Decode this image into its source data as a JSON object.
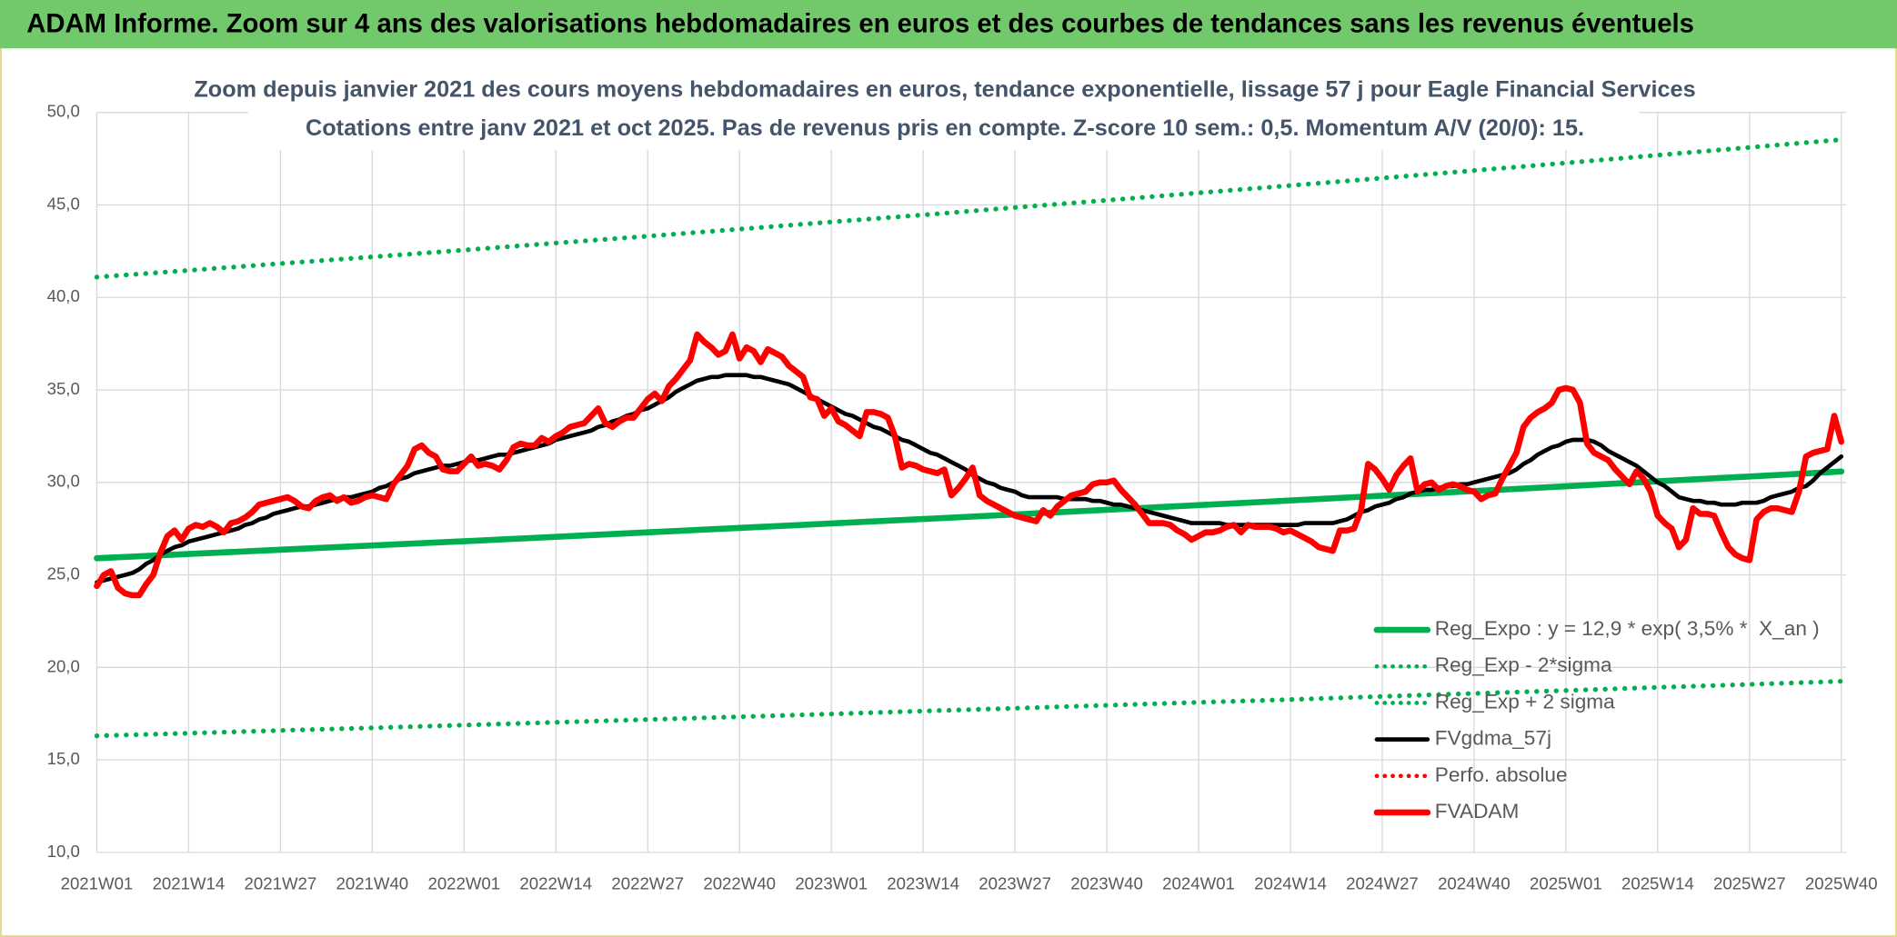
{
  "chart_data": {
    "type": "line",
    "title": "ADAM Informe. Zoom sur 4 ans des valorisations hebdomadaires en euros et des courbes de tendances sans les revenus éventuels",
    "subtitle": [
      "Zoom depuis janvier 2021 des cours moyens hebdomadaires en euros, tendance exponentielle, lissage 57 j pour Eagle Financial Services",
      "Cotations entre janv 2021 et oct 2025. Pas de revenus pris en compte. Z-score 10 sem.: 0,5. Momentum A/V (20/0): 15."
    ],
    "categories": [
      "2021W01",
      null,
      null,
      null,
      null,
      null,
      null,
      null,
      null,
      null,
      null,
      null,
      null,
      "2021W14",
      null,
      null,
      null,
      null,
      null,
      null,
      null,
      null,
      null,
      null,
      null,
      null,
      "2021W27",
      null,
      null,
      null,
      null,
      null,
      null,
      null,
      null,
      null,
      null,
      null,
      null,
      "2021W40",
      null,
      null,
      null,
      null,
      null,
      null,
      null,
      null,
      null,
      null,
      null,
      null,
      "2022W01",
      null,
      null,
      null,
      null,
      null,
      null,
      null,
      null,
      null,
      null,
      null,
      null,
      "2022W14",
      null,
      null,
      null,
      null,
      null,
      null,
      null,
      null,
      null,
      null,
      null,
      null,
      "2022W27",
      null,
      null,
      null,
      null,
      null,
      null,
      null,
      null,
      null,
      null,
      null,
      null,
      "2022W40",
      null,
      null,
      null,
      null,
      null,
      null,
      null,
      null,
      null,
      null,
      null,
      null,
      "2023W01",
      null,
      null,
      null,
      null,
      null,
      null,
      null,
      null,
      null,
      null,
      null,
      null,
      "2023W14",
      null,
      null,
      null,
      null,
      null,
      null,
      null,
      null,
      null,
      null,
      null,
      null,
      "2023W27",
      null,
      null,
      null,
      null,
      null,
      null,
      null,
      null,
      null,
      null,
      null,
      null,
      "2023W40",
      null,
      null,
      null,
      null,
      null,
      null,
      null,
      null,
      null,
      null,
      null,
      null,
      "2024W01",
      null,
      null,
      null,
      null,
      null,
      null,
      null,
      null,
      null,
      null,
      null,
      null,
      "2024W14",
      null,
      null,
      null,
      null,
      null,
      null,
      null,
      null,
      null,
      null,
      null,
      null,
      "2024W27",
      null,
      null,
      null,
      null,
      null,
      null,
      null,
      null,
      null,
      null,
      null,
      null,
      "2024W40",
      null,
      null,
      null,
      null,
      null,
      null,
      null,
      null,
      null,
      null,
      null,
      null,
      "2025W01",
      null,
      null,
      null,
      null,
      null,
      null,
      null,
      null,
      null,
      null,
      null,
      null,
      "2025W14",
      null,
      null,
      null,
      null,
      null,
      null,
      null,
      null,
      null,
      null,
      null,
      null,
      "2025W27",
      null,
      null,
      null,
      null,
      null,
      null,
      null,
      null,
      null,
      null,
      null,
      null,
      "2025W40"
    ],
    "ylim": [
      10,
      50
    ],
    "yticks": [
      {
        "value": 10,
        "label": "10,0"
      },
      {
        "value": 15,
        "label": "15,0"
      },
      {
        "value": 20,
        "label": "20,0"
      },
      {
        "value": 25,
        "label": "25,0"
      },
      {
        "value": 30,
        "label": "30,0"
      },
      {
        "value": 35,
        "label": "35,0"
      },
      {
        "value": 40,
        "label": "40,0"
      },
      {
        "value": 45,
        "label": "45,0"
      },
      {
        "value": 50,
        "label": "50,0"
      }
    ],
    "grid": true,
    "legend": "lower right",
    "series": [
      {
        "name": "Reg_Expo : y = 12,9 * exp( 3,5% *  X_an )",
        "color": "#00b050",
        "style": "solid",
        "x": [
          "2021W01",
          "2021W14",
          "2021W27",
          "2021W40",
          "2022W01",
          "2022W14",
          "2022W27",
          "2022W40",
          "2023W01",
          "2023W14",
          "2023W27",
          "2023W40",
          "2024W01",
          "2024W14",
          "2024W27",
          "2024W40",
          "2025W01",
          "2025W14",
          "2025W27",
          "2025W40"
        ],
        "values": [
          25.9,
          26.13,
          26.36,
          26.59,
          26.82,
          27.06,
          27.3,
          27.54,
          27.78,
          28.02,
          28.27,
          28.52,
          28.77,
          29.02,
          29.28,
          29.53,
          29.79,
          30.06,
          30.32,
          30.59
        ]
      },
      {
        "name": "Reg_Exp - 2*sigma",
        "color": "#00b050",
        "style": "dotted",
        "x": [
          "2021W01",
          "2021W14",
          "2021W27",
          "2021W40",
          "2022W01",
          "2022W14",
          "2022W27",
          "2022W40",
          "2023W01",
          "2023W14",
          "2023W27",
          "2023W40",
          "2024W01",
          "2024W14",
          "2024W27",
          "2024W40",
          "2025W01",
          "2025W14",
          "2025W27",
          "2025W40"
        ],
        "values": [
          16.3,
          16.44,
          16.59,
          16.73,
          16.88,
          17.03,
          17.18,
          17.33,
          17.48,
          17.64,
          17.79,
          17.95,
          18.11,
          18.26,
          18.43,
          18.59,
          18.75,
          18.92,
          19.08,
          19.25
        ]
      },
      {
        "name": "Reg_Exp + 2 sigma",
        "color": "#00b050",
        "style": "dotted",
        "x": [
          "2021W01",
          "2021W14",
          "2021W27",
          "2021W40",
          "2022W01",
          "2022W14",
          "2022W27",
          "2022W40",
          "2023W01",
          "2023W14",
          "2023W27",
          "2023W40",
          "2024W01",
          "2024W14",
          "2024W27",
          "2024W40",
          "2025W01",
          "2025W14",
          "2025W27",
          "2025W40"
        ],
        "values": [
          41.1,
          41.46,
          41.83,
          42.19,
          42.56,
          42.94,
          43.31,
          43.69,
          44.08,
          44.46,
          44.86,
          45.25,
          45.65,
          46.05,
          46.45,
          46.86,
          47.27,
          47.69,
          48.11,
          48.53
        ]
      },
      {
        "name": "FVgdma_57j",
        "color": "#000000",
        "style": "solid",
        "values": [
          24.6,
          24.7,
          24.8,
          24.9,
          25.0,
          25.1,
          25.3,
          25.6,
          25.8,
          26.1,
          26.3,
          26.5,
          26.6,
          26.8,
          26.9,
          27.0,
          27.1,
          27.2,
          27.3,
          27.4,
          27.5,
          27.7,
          27.8,
          28.0,
          28.1,
          28.3,
          28.4,
          28.5,
          28.6,
          28.7,
          28.7,
          28.8,
          28.9,
          29.0,
          29.1,
          29.2,
          29.2,
          29.3,
          29.4,
          29.5,
          29.7,
          29.8,
          30.0,
          30.2,
          30.3,
          30.5,
          30.6,
          30.7,
          30.8,
          30.9,
          30.9,
          31.0,
          31.1,
          31.2,
          31.2,
          31.3,
          31.4,
          31.5,
          31.5,
          31.6,
          31.7,
          31.8,
          31.9,
          32.0,
          32.1,
          32.3,
          32.4,
          32.5,
          32.6,
          32.7,
          32.8,
          33.0,
          33.1,
          33.3,
          33.4,
          33.6,
          33.7,
          33.9,
          34.0,
          34.2,
          34.4,
          34.6,
          34.9,
          35.1,
          35.3,
          35.5,
          35.6,
          35.7,
          35.7,
          35.8,
          35.8,
          35.8,
          35.8,
          35.7,
          35.7,
          35.6,
          35.5,
          35.4,
          35.3,
          35.1,
          34.9,
          34.7,
          34.5,
          34.3,
          34.1,
          33.9,
          33.7,
          33.6,
          33.4,
          33.2,
          33.0,
          32.9,
          32.7,
          32.5,
          32.3,
          32.2,
          32.0,
          31.8,
          31.6,
          31.5,
          31.3,
          31.1,
          30.9,
          30.7,
          30.4,
          30.2,
          30.0,
          29.9,
          29.7,
          29.6,
          29.5,
          29.3,
          29.2,
          29.2,
          29.2,
          29.2,
          29.2,
          29.1,
          29.1,
          29.1,
          29.1,
          29.0,
          29.0,
          28.9,
          28.8,
          28.8,
          28.7,
          28.6,
          28.5,
          28.4,
          28.3,
          28.2,
          28.1,
          28.0,
          27.9,
          27.8,
          27.8,
          27.8,
          27.8,
          27.8,
          27.7,
          27.7,
          27.7,
          27.7,
          27.7,
          27.7,
          27.7,
          27.7,
          27.7,
          27.7,
          27.7,
          27.8,
          27.8,
          27.8,
          27.8,
          27.8,
          27.9,
          28.0,
          28.2,
          28.4,
          28.5,
          28.7,
          28.8,
          28.9,
          29.1,
          29.2,
          29.4,
          29.5,
          29.6,
          29.6,
          29.7,
          29.8,
          29.8,
          29.9,
          29.9,
          30.0,
          30.1,
          30.2,
          30.3,
          30.4,
          30.5,
          30.7,
          31.0,
          31.2,
          31.5,
          31.7,
          31.9,
          32.0,
          32.2,
          32.3,
          32.3,
          32.3,
          32.2,
          32.0,
          31.7,
          31.5,
          31.3,
          31.1,
          30.9,
          30.6,
          30.3,
          30.0,
          29.8,
          29.5,
          29.2,
          29.1,
          29.0,
          29.0,
          28.9,
          28.9,
          28.8,
          28.8,
          28.8,
          28.9,
          28.9,
          28.9,
          29.0,
          29.2,
          29.3,
          29.4,
          29.5,
          29.7,
          29.8,
          30.1,
          30.5,
          30.8,
          31.1,
          31.4
        ]
      },
      {
        "name": "Perfo. absolue",
        "color": "#ff0000",
        "style": "dotted"
      },
      {
        "name": "FVADAM",
        "color": "#ff0000",
        "style": "solid",
        "values": [
          24.4,
          25.0,
          25.2,
          24.3,
          24.0,
          23.9,
          23.9,
          24.5,
          25.0,
          26.2,
          27.1,
          27.4,
          26.9,
          27.5,
          27.7,
          27.6,
          27.8,
          27.6,
          27.3,
          27.8,
          27.9,
          28.1,
          28.4,
          28.8,
          28.9,
          29.0,
          29.1,
          29.2,
          29.0,
          28.7,
          28.6,
          29.0,
          29.2,
          29.3,
          29.0,
          29.2,
          28.9,
          29.0,
          29.2,
          29.3,
          29.2,
          29.1,
          29.9,
          30.4,
          30.9,
          31.8,
          32.0,
          31.6,
          31.4,
          30.7,
          30.6,
          30.6,
          31.0,
          31.4,
          30.9,
          31.0,
          30.9,
          30.7,
          31.2,
          31.9,
          32.1,
          32.0,
          32.0,
          32.4,
          32.2,
          32.5,
          32.7,
          33.0,
          33.1,
          33.2,
          33.6,
          34.0,
          33.2,
          33.0,
          33.3,
          33.5,
          33.5,
          34.0,
          34.5,
          34.8,
          34.4,
          35.2,
          35.6,
          36.1,
          36.6,
          38.0,
          37.6,
          37.3,
          36.9,
          37.1,
          38.0,
          36.7,
          37.3,
          37.1,
          36.5,
          37.2,
          37.0,
          36.8,
          36.3,
          36.0,
          35.7,
          34.6,
          34.5,
          33.6,
          34.0,
          33.3,
          33.1,
          32.8,
          32.5,
          33.8,
          33.8,
          33.7,
          33.5,
          32.5,
          30.8,
          31.0,
          30.9,
          30.7,
          30.6,
          30.5,
          30.7,
          29.3,
          29.7,
          30.2,
          30.8,
          29.3,
          29.0,
          28.8,
          28.6,
          28.4,
          28.2,
          28.1,
          28.0,
          27.9,
          28.5,
          28.2,
          28.7,
          29.0,
          29.3,
          29.4,
          29.5,
          29.9,
          30.0,
          30.0,
          30.1,
          29.6,
          29.2,
          28.8,
          28.3,
          27.8,
          27.8,
          27.8,
          27.7,
          27.4,
          27.2,
          26.9,
          27.1,
          27.3,
          27.3,
          27.4,
          27.6,
          27.7,
          27.3,
          27.7,
          27.6,
          27.6,
          27.6,
          27.5,
          27.3,
          27.4,
          27.2,
          27.0,
          26.8,
          26.5,
          26.4,
          26.3,
          27.4,
          27.4,
          27.5,
          28.5,
          31.0,
          30.7,
          30.2,
          29.6,
          30.4,
          30.9,
          31.3,
          29.5,
          29.9,
          30.0,
          29.6,
          29.8,
          29.9,
          29.8,
          29.6,
          29.5,
          29.1,
          29.3,
          29.4,
          30.2,
          30.9,
          31.6,
          33.0,
          33.5,
          33.8,
          34.0,
          34.3,
          35.0,
          35.1,
          35.0,
          34.3,
          32.1,
          31.6,
          31.4,
          31.2,
          30.7,
          30.3,
          29.9,
          30.6,
          30.2,
          29.5,
          28.2,
          27.8,
          27.5,
          26.5,
          26.9,
          28.6,
          28.3,
          28.3,
          28.2,
          27.3,
          26.5,
          26.1,
          25.9,
          25.8,
          28.0,
          28.4,
          28.6,
          28.6,
          28.5,
          28.4,
          29.5,
          31.4,
          31.6,
          31.7,
          31.8,
          33.6,
          32.2
        ]
      }
    ]
  }
}
